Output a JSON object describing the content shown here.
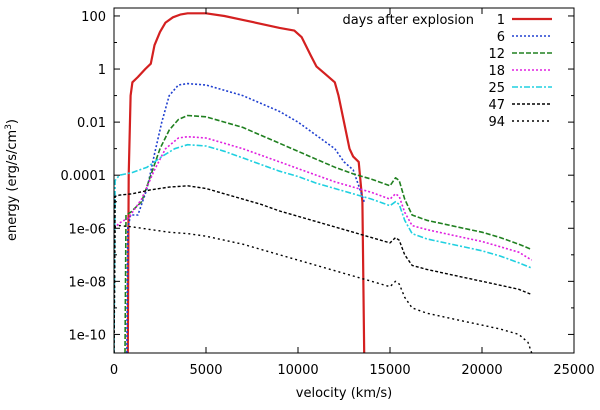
{
  "chart_data": {
    "type": "line",
    "xlabel": "velocity (km/s)",
    "ylabel_main": "energy (erg/s/cm",
    "ylabel_sup": "3",
    "ylabel_end": ")",
    "xlim": [
      0,
      25000
    ],
    "ylim_log10": [
      -10.7,
      2.3
    ],
    "yscale": "log",
    "x_ticks": [
      0,
      5000,
      10000,
      15000,
      20000,
      25000
    ],
    "x_tick_labels": [
      "0",
      "5000",
      "10000",
      "15000",
      "20000",
      "25000"
    ],
    "y_ticks_log10": [
      2,
      0,
      -2,
      -4,
      -6,
      -8,
      -10
    ],
    "y_tick_labels": [
      "100",
      "1",
      "0.01",
      "0.0001",
      "1e-06",
      "1e-08",
      "1e-10"
    ],
    "legend_title": "days after explosion",
    "series": [
      {
        "name": "1",
        "color": "#d42020",
        "dash": "",
        "width": 2.2,
        "points": [
          [
            750,
            -10.7
          ],
          [
            800,
            -4
          ],
          [
            900,
            -1
          ],
          [
            1000,
            -0.5
          ],
          [
            1300,
            -0.3
          ],
          [
            1700,
            0
          ],
          [
            2000,
            0.2
          ],
          [
            2200,
            0.9
          ],
          [
            2500,
            1.4
          ],
          [
            2800,
            1.75
          ],
          [
            3200,
            1.95
          ],
          [
            3600,
            2.05
          ],
          [
            4000,
            2.1
          ],
          [
            5000,
            2.1
          ],
          [
            6000,
            2.0
          ],
          [
            7000,
            1.85
          ],
          [
            8000,
            1.7
          ],
          [
            9000,
            1.55
          ],
          [
            9800,
            1.45
          ],
          [
            10200,
            1.2
          ],
          [
            10700,
            0.5
          ],
          [
            11000,
            0.1
          ],
          [
            11500,
            -0.2
          ],
          [
            12000,
            -0.5
          ],
          [
            12200,
            -1.0
          ],
          [
            12500,
            -2.0
          ],
          [
            12800,
            -3.0
          ],
          [
            13000,
            -3.3
          ],
          [
            13300,
            -3.5
          ],
          [
            13500,
            -5
          ],
          [
            13600,
            -10.7
          ]
        ]
      },
      {
        "name": "6",
        "color": "#2040d0",
        "dash": "2,2",
        "width": 1.6,
        "points": [
          [
            700,
            -10.7
          ],
          [
            750,
            -6
          ],
          [
            900,
            -5.5
          ],
          [
            1300,
            -5.5
          ],
          [
            1800,
            -4.5
          ],
          [
            2200,
            -3.2
          ],
          [
            2600,
            -2.0
          ],
          [
            3000,
            -1.0
          ],
          [
            3500,
            -0.6
          ],
          [
            4000,
            -0.55
          ],
          [
            5000,
            -0.6
          ],
          [
            6000,
            -0.8
          ],
          [
            7000,
            -1.0
          ],
          [
            8000,
            -1.3
          ],
          [
            9000,
            -1.6
          ],
          [
            10000,
            -2.0
          ],
          [
            11000,
            -2.5
          ],
          [
            12000,
            -3.0
          ],
          [
            12500,
            -3.5
          ],
          [
            13000,
            -3.8
          ],
          [
            13600,
            -5
          ]
        ]
      },
      {
        "name": "12",
        "color": "#208020",
        "dash": "5,2",
        "width": 1.6,
        "points": [
          [
            600,
            -10.7
          ],
          [
            650,
            -5.5
          ],
          [
            900,
            -5.4
          ],
          [
            1500,
            -5.0
          ],
          [
            2000,
            -4.0
          ],
          [
            2500,
            -3.0
          ],
          [
            3000,
            -2.3
          ],
          [
            3500,
            -1.9
          ],
          [
            4000,
            -1.75
          ],
          [
            5000,
            -1.8
          ],
          [
            6000,
            -2.0
          ],
          [
            7000,
            -2.2
          ],
          [
            8000,
            -2.5
          ],
          [
            9000,
            -2.8
          ],
          [
            10000,
            -3.1
          ],
          [
            11000,
            -3.4
          ],
          [
            12000,
            -3.7
          ],
          [
            13000,
            -3.95
          ],
          [
            14000,
            -4.15
          ],
          [
            15000,
            -4.4
          ],
          [
            15300,
            -4.1
          ],
          [
            15500,
            -4.2
          ],
          [
            15800,
            -4.9
          ],
          [
            16200,
            -5.5
          ],
          [
            17000,
            -5.7
          ],
          [
            18000,
            -5.85
          ],
          [
            19000,
            -6.0
          ],
          [
            20000,
            -6.15
          ],
          [
            21000,
            -6.35
          ],
          [
            22000,
            -6.6
          ],
          [
            22700,
            -6.8
          ]
        ]
      },
      {
        "name": "18",
        "color": "#e020e0",
        "dash": "2,2",
        "width": 1.6,
        "points": [
          [
            0,
            -6
          ],
          [
            300,
            -5.8
          ],
          [
            800,
            -5.6
          ],
          [
            1500,
            -4.9
          ],
          [
            2200,
            -3.8
          ],
          [
            2800,
            -3.0
          ],
          [
            3500,
            -2.6
          ],
          [
            4000,
            -2.55
          ],
          [
            5000,
            -2.6
          ],
          [
            6000,
            -2.8
          ],
          [
            7000,
            -3.0
          ],
          [
            8000,
            -3.25
          ],
          [
            9000,
            -3.5
          ],
          [
            10000,
            -3.75
          ],
          [
            11000,
            -4.0
          ],
          [
            12000,
            -4.25
          ],
          [
            13000,
            -4.45
          ],
          [
            14000,
            -4.65
          ],
          [
            15000,
            -4.9
          ],
          [
            15300,
            -4.7
          ],
          [
            15500,
            -4.8
          ],
          [
            15800,
            -5.4
          ],
          [
            16200,
            -5.9
          ],
          [
            17000,
            -6.05
          ],
          [
            18000,
            -6.2
          ],
          [
            19000,
            -6.35
          ],
          [
            20000,
            -6.5
          ],
          [
            21000,
            -6.7
          ],
          [
            22000,
            -6.9
          ],
          [
            22700,
            -7.2
          ]
        ]
      },
      {
        "name": "25",
        "color": "#20d0e0",
        "dash": "6,2,2,2",
        "width": 1.6,
        "points": [
          [
            0,
            -10.7
          ],
          [
            60,
            -4.2
          ],
          [
            300,
            -4.0
          ],
          [
            1000,
            -3.9
          ],
          [
            1800,
            -3.7
          ],
          [
            2600,
            -3.3
          ],
          [
            3300,
            -3.0
          ],
          [
            4000,
            -2.85
          ],
          [
            5000,
            -2.9
          ],
          [
            6000,
            -3.1
          ],
          [
            7000,
            -3.35
          ],
          [
            8000,
            -3.6
          ],
          [
            9000,
            -3.85
          ],
          [
            10000,
            -4.05
          ],
          [
            11000,
            -4.3
          ],
          [
            12000,
            -4.5
          ],
          [
            13000,
            -4.7
          ],
          [
            14000,
            -4.9
          ],
          [
            15000,
            -5.15
          ],
          [
            15300,
            -5.0
          ],
          [
            15500,
            -5.1
          ],
          [
            15800,
            -5.7
          ],
          [
            16200,
            -6.2
          ],
          [
            17000,
            -6.4
          ],
          [
            18000,
            -6.55
          ],
          [
            19000,
            -6.7
          ],
          [
            20000,
            -6.85
          ],
          [
            21000,
            -7.05
          ],
          [
            22000,
            -7.3
          ],
          [
            22700,
            -7.5
          ]
        ]
      },
      {
        "name": "47",
        "color": "#000000",
        "dash": "3,2",
        "width": 1.4,
        "points": [
          [
            0,
            -10.7
          ],
          [
            60,
            -4.8
          ],
          [
            300,
            -4.75
          ],
          [
            1000,
            -4.7
          ],
          [
            2000,
            -4.55
          ],
          [
            3000,
            -4.45
          ],
          [
            4000,
            -4.4
          ],
          [
            5000,
            -4.5
          ],
          [
            6000,
            -4.7
          ],
          [
            7000,
            -4.9
          ],
          [
            8000,
            -5.1
          ],
          [
            9000,
            -5.35
          ],
          [
            10000,
            -5.55
          ],
          [
            11000,
            -5.75
          ],
          [
            12000,
            -5.95
          ],
          [
            13000,
            -6.15
          ],
          [
            14000,
            -6.35
          ],
          [
            15000,
            -6.55
          ],
          [
            15300,
            -6.35
          ],
          [
            15500,
            -6.45
          ],
          [
            15800,
            -7.0
          ],
          [
            16200,
            -7.4
          ],
          [
            17000,
            -7.55
          ],
          [
            18000,
            -7.7
          ],
          [
            19000,
            -7.85
          ],
          [
            20000,
            -8.0
          ],
          [
            21000,
            -8.15
          ],
          [
            22000,
            -8.3
          ],
          [
            22700,
            -8.5
          ]
        ]
      },
      {
        "name": "94",
        "color": "#000000",
        "dash": "2,3",
        "width": 1.4,
        "points": [
          [
            0,
            -10.7
          ],
          [
            60,
            -5.95
          ],
          [
            300,
            -5.9
          ],
          [
            1000,
            -5.95
          ],
          [
            2000,
            -6.05
          ],
          [
            3000,
            -6.15
          ],
          [
            4000,
            -6.2
          ],
          [
            5000,
            -6.3
          ],
          [
            6000,
            -6.45
          ],
          [
            7000,
            -6.6
          ],
          [
            8000,
            -6.8
          ],
          [
            9000,
            -7.0
          ],
          [
            10000,
            -7.2
          ],
          [
            11000,
            -7.4
          ],
          [
            12000,
            -7.6
          ],
          [
            13000,
            -7.8
          ],
          [
            14000,
            -8.0
          ],
          [
            15000,
            -8.2
          ],
          [
            15300,
            -8.0
          ],
          [
            15500,
            -8.1
          ],
          [
            15800,
            -8.6
          ],
          [
            16200,
            -9.0
          ],
          [
            17000,
            -9.2
          ],
          [
            18000,
            -9.35
          ],
          [
            19000,
            -9.5
          ],
          [
            20000,
            -9.65
          ],
          [
            21000,
            -9.8
          ],
          [
            22000,
            -10.0
          ],
          [
            22500,
            -10.3
          ],
          [
            22700,
            -10.7
          ]
        ]
      }
    ]
  }
}
